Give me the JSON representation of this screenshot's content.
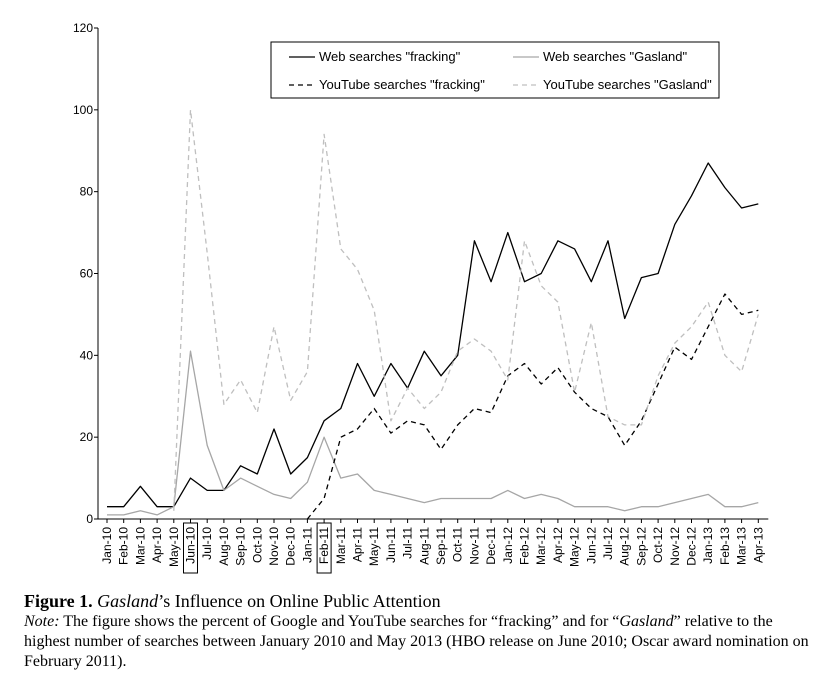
{
  "chart_data": {
    "type": "line",
    "title": "",
    "xlabel": "",
    "ylabel": "",
    "ylim": [
      0,
      120
    ],
    "yticks": [
      0,
      20,
      40,
      60,
      80,
      100,
      120
    ],
    "grid": false,
    "legend_position": "top-right",
    "highlighted_categories": [
      "Jun-10",
      "Feb-11"
    ],
    "categories": [
      "Jan-10",
      "Feb-10",
      "Mar-10",
      "Apr-10",
      "May-10",
      "Jun-10",
      "Jul-10",
      "Aug-10",
      "Sep-10",
      "Oct-10",
      "Nov-10",
      "Dec-10",
      "Jan-11",
      "Feb-11",
      "Mar-11",
      "Apr-11",
      "May-11",
      "Jun-11",
      "Jul-11",
      "Aug-11",
      "Sep-11",
      "Oct-11",
      "Nov-11",
      "Dec-11",
      "Jan-12",
      "Feb-12",
      "Mar-12",
      "Apr-12",
      "May-12",
      "Jun-12",
      "Jul-12",
      "Aug-12",
      "Sep-12",
      "Oct-12",
      "Nov-12",
      "Dec-12",
      "Jan-13",
      "Feb-13",
      "Mar-13",
      "Apr-13"
    ],
    "series": [
      {
        "name": "Web searches \"fracking\"",
        "style": "solid",
        "color": "#000000",
        "values": [
          3,
          3,
          8,
          3,
          3,
          10,
          7,
          7,
          13,
          11,
          22,
          11,
          15,
          24,
          27,
          38,
          30,
          38,
          32,
          41,
          35,
          40,
          68,
          58,
          70,
          58,
          60,
          68,
          66,
          58,
          68,
          49,
          59,
          60,
          72,
          79,
          87,
          81,
          76,
          77
        ]
      },
      {
        "name": "Web searches \"Gasland\"",
        "style": "solid",
        "color": "#a6a6a6",
        "values": [
          1,
          1,
          2,
          1,
          3,
          41,
          18,
          7,
          10,
          8,
          6,
          5,
          9,
          20,
          10,
          11,
          7,
          6,
          5,
          4,
          5,
          5,
          5,
          5,
          7,
          5,
          6,
          5,
          3,
          3,
          3,
          2,
          3,
          3,
          4,
          5,
          6,
          3,
          3,
          4
        ]
      },
      {
        "name": "YouTube searches \"fracking\"",
        "style": "dashed",
        "color": "#000000",
        "values": [
          null,
          null,
          null,
          null,
          null,
          null,
          null,
          null,
          null,
          null,
          null,
          null,
          0,
          5,
          20,
          22,
          27,
          21,
          24,
          23,
          17,
          23,
          27,
          26,
          35,
          38,
          33,
          37,
          31,
          27,
          25,
          18,
          24,
          33,
          42,
          39,
          47,
          55,
          50,
          51
        ]
      },
      {
        "name": "YouTube searches \"Gasland\"",
        "style": "dashed",
        "color": "#bfbfbf",
        "values": [
          null,
          null,
          null,
          null,
          2,
          100,
          65,
          28,
          34,
          26,
          47,
          29,
          36,
          94,
          66,
          61,
          51,
          24,
          32,
          27,
          31,
          41,
          44,
          41,
          34,
          68,
          57,
          53,
          31,
          48,
          25,
          23,
          23,
          35,
          43,
          47,
          53,
          40,
          36,
          50
        ]
      }
    ]
  },
  "caption": {
    "label": "Figure 1.",
    "title_italic": "Gasland",
    "title_rest": "’s Influence on Online Public Attention",
    "note_label": "Note:",
    "note_part1": " The figure shows the percent of Google and YouTube searches for “fracking” and for “",
    "note_italic": "Gasland",
    "note_part2": "” relative to the highest number of searches between January 2010 and May 2013 (HBO release on June 2010; Oscar award nomination on February 2011)."
  }
}
